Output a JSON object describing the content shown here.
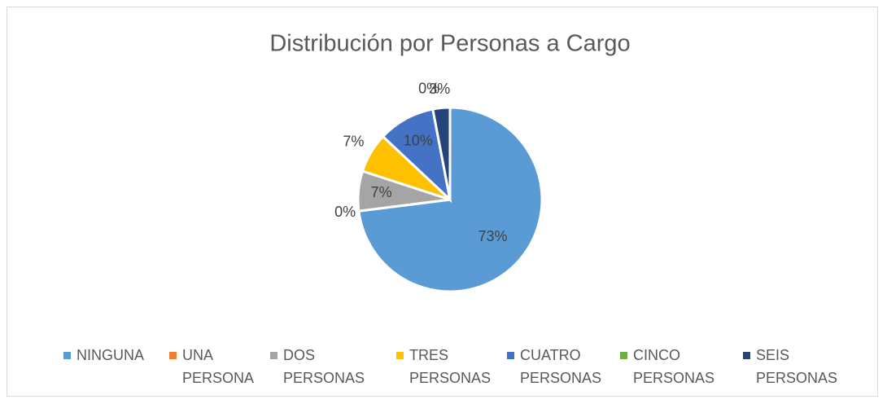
{
  "chart_data": {
    "type": "pie",
    "title": "Distribución por Personas a Cargo",
    "categories": [
      "NINGUNA",
      "UNA PERSONA",
      "DOS PERSONAS",
      "TRES PERSONAS",
      "CUATRO PERSONAS",
      "CINCO PERSONAS",
      "SEIS PERSONAS"
    ],
    "values": [
      73,
      0,
      7,
      7,
      10,
      0,
      3
    ],
    "value_labels": [
      "73%",
      "0%",
      "7%",
      "7%",
      "10%",
      "0%",
      "3%"
    ],
    "colors": [
      "#5b9bd5",
      "#ed7d31",
      "#a5a5a5",
      "#ffc000",
      "#4472c4",
      "#70ad47",
      "#264478"
    ],
    "legend": "bottom"
  }
}
